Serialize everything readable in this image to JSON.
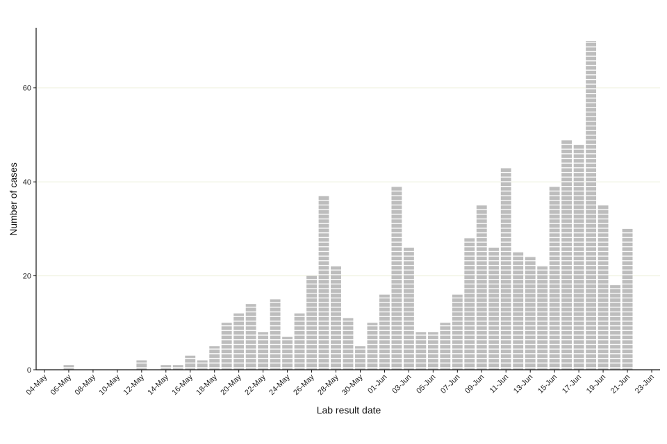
{
  "chart_data": {
    "type": "bar",
    "title": "",
    "xlabel": "Lab result date",
    "ylabel": "Number of cases",
    "ylim": [
      0,
      70
    ],
    "yticks": [
      0,
      20,
      40,
      60
    ],
    "grid": "horizontal",
    "bar_color": "#bdbdbd",
    "bar_stripe_color": "#ffffff",
    "categories": [
      "04-May",
      "05-May",
      "06-May",
      "07-May",
      "08-May",
      "09-May",
      "10-May",
      "11-May",
      "12-May",
      "13-May",
      "14-May",
      "15-May",
      "16-May",
      "17-May",
      "18-May",
      "19-May",
      "20-May",
      "21-May",
      "22-May",
      "23-May",
      "24-May",
      "25-May",
      "26-May",
      "27-May",
      "28-May",
      "29-May",
      "30-May",
      "31-May",
      "01-Jun",
      "02-Jun",
      "03-Jun",
      "04-Jun",
      "05-Jun",
      "06-Jun",
      "07-Jun",
      "08-Jun",
      "09-Jun",
      "10-Jun",
      "11-Jun",
      "12-Jun",
      "13-Jun",
      "14-Jun",
      "15-Jun",
      "16-Jun",
      "17-Jun",
      "18-Jun",
      "19-Jun",
      "20-Jun",
      "21-Jun",
      "22-Jun",
      "23-Jun"
    ],
    "values": [
      0,
      0,
      1,
      0,
      0,
      0,
      0,
      0,
      2,
      0,
      1,
      1,
      3,
      2,
      5,
      10,
      12,
      14,
      8,
      15,
      7,
      12,
      20,
      37,
      22,
      11,
      5,
      10,
      16,
      39,
      26,
      8,
      8,
      10,
      16,
      28,
      35,
      26,
      43,
      25,
      24,
      22,
      39,
      49,
      48,
      70,
      35,
      18,
      30,
      0,
      0
    ],
    "xtick_labels": [
      "04-May",
      "06-May",
      "08-May",
      "10-May",
      "12-May",
      "14-May",
      "16-May",
      "18-May",
      "20-May",
      "22-May",
      "24-May",
      "26-May",
      "28-May",
      "30-May",
      "01-Jun",
      "03-Jun",
      "05-Jun",
      "07-Jun",
      "09-Jun",
      "11-Jun",
      "13-Jun",
      "15-Jun",
      "17-Jun",
      "19-Jun",
      "21-Jun",
      "23-Jun"
    ]
  }
}
